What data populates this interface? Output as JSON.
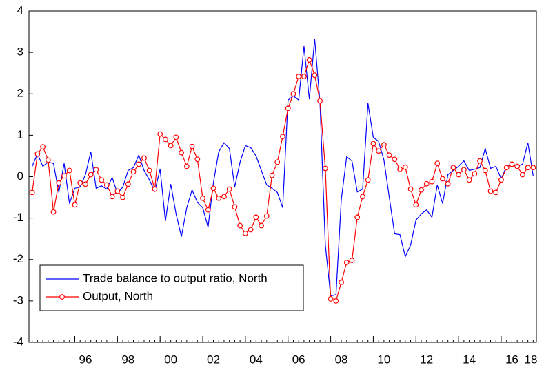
{
  "chart_data": {
    "type": "line",
    "x": [
      1994,
      1994.25,
      1994.5,
      1994.75,
      1995,
      1995.25,
      1995.5,
      1995.75,
      1996,
      1996.25,
      1996.5,
      1996.75,
      1997,
      1997.25,
      1997.5,
      1997.75,
      1998,
      1998.25,
      1998.5,
      1998.75,
      1999,
      1999.25,
      1999.5,
      1999.75,
      2000,
      2000.25,
      2000.5,
      2000.75,
      2001,
      2001.25,
      2001.5,
      2001.75,
      2002,
      2002.25,
      2002.5,
      2002.75,
      2003,
      2003.25,
      2003.5,
      2003.75,
      2004,
      2004.25,
      2004.5,
      2004.75,
      2005,
      2005.25,
      2005.5,
      2005.75,
      2006,
      2006.25,
      2006.5,
      2006.75,
      2007,
      2007.25,
      2007.5,
      2007.75,
      2008,
      2008.25,
      2008.5,
      2008.75,
      2009,
      2009.25,
      2009.5,
      2009.75,
      2010,
      2010.25,
      2010.5,
      2010.75,
      2011,
      2011.25,
      2011.5,
      2011.75,
      2012,
      2012.25,
      2012.5,
      2012.75,
      2013,
      2013.25,
      2013.5,
      2013.75,
      2014,
      2014.25,
      2014.5,
      2014.75,
      2015,
      2015.25,
      2015.5,
      2015.75,
      2016,
      2016.25,
      2016.5,
      2016.75,
      2017,
      2017.25,
      2017.5
    ],
    "series": [
      {
        "name": "Trade balance to output ratio, North",
        "color": "#0000ff",
        "markers": false,
        "values": [
          0.25,
          0.55,
          0.25,
          0.35,
          0.32,
          -0.38,
          0.32,
          -0.65,
          -0.28,
          -0.25,
          0.05,
          0.6,
          -0.28,
          -0.22,
          -0.3,
          -0.02,
          -0.4,
          -0.25,
          0.15,
          0.22,
          0.52,
          0.15,
          -0.08,
          -0.35,
          0.18,
          -1.07,
          -0.18,
          -0.9,
          -1.45,
          -0.75,
          -0.32,
          -0.62,
          -0.75,
          -1.22,
          -0.15,
          0.6,
          0.82,
          0.68,
          -0.25,
          0.35,
          0.75,
          0.7,
          0.5,
          0.15,
          -0.2,
          -0.28,
          -0.38,
          -0.75,
          1.85,
          1.95,
          1.85,
          3.15,
          1.87,
          3.33,
          1.78,
          -1.65,
          -2.88,
          -2.85,
          -0.55,
          0.48,
          0.38,
          -0.37,
          -0.3,
          1.77,
          0.95,
          0.85,
          0.4,
          -0.5,
          -1.38,
          -1.4,
          -1.93,
          -1.65,
          -1.05,
          -0.9,
          -0.8,
          -0.98,
          -0.2,
          -0.65,
          0.05,
          0.15,
          0.25,
          0.38,
          0.15,
          0.18,
          0.22,
          0.68,
          0.2,
          0.25,
          -0.05,
          0.25,
          0.28,
          0.25,
          0.3,
          0.82,
          0.02
        ]
      },
      {
        "name": "Output, North",
        "color": "#ff0000",
        "markers": true,
        "values": [
          -0.38,
          0.55,
          0.72,
          0.4,
          -0.85,
          -0.15,
          0.02,
          0.15,
          -0.68,
          -0.15,
          -0.18,
          0.05,
          0.17,
          -0.08,
          -0.2,
          -0.48,
          -0.35,
          -0.5,
          -0.18,
          0.12,
          0.3,
          0.45,
          0.15,
          -0.3,
          1.03,
          0.9,
          0.75,
          0.95,
          0.58,
          0.25,
          0.73,
          0.42,
          -0.52,
          -0.8,
          -0.28,
          -0.52,
          -0.48,
          -0.3,
          -0.73,
          -1.18,
          -1.37,
          -1.28,
          -0.98,
          -1.18,
          -0.95,
          0.03,
          0.35,
          0.97,
          1.65,
          2.0,
          2.42,
          2.42,
          2.82,
          2.45,
          1.83,
          0.2,
          -2.95,
          -3.0,
          -2.55,
          -2.07,
          -2.02,
          -0.98,
          -0.48,
          -0.08,
          0.8,
          0.62,
          0.77,
          0.52,
          0.42,
          0.18,
          0.23,
          -0.3,
          -0.68,
          -0.32,
          -0.17,
          -0.12,
          0.32,
          -0.05,
          -0.17,
          0.22,
          0.05,
          0.17,
          -0.08,
          0.07,
          0.38,
          0.15,
          -0.35,
          -0.38,
          -0.08,
          0.22,
          0.3,
          0.25,
          0.05,
          0.22,
          0.22
        ]
      }
    ],
    "xlim": [
      1993.85,
      2017.65
    ],
    "xticks": [
      {
        "value": 1996,
        "label": "96"
      },
      {
        "value": 1998,
        "label": "98"
      },
      {
        "value": 2000,
        "label": "00"
      },
      {
        "value": 2002,
        "label": "02"
      },
      {
        "value": 2004,
        "label": "04"
      },
      {
        "value": 2006,
        "label": "06"
      },
      {
        "value": 2008,
        "label": "08"
      },
      {
        "value": 2010,
        "label": "10"
      },
      {
        "value": 2012,
        "label": "12"
      },
      {
        "value": 2014,
        "label": "14"
      },
      {
        "value": 2016,
        "label": "16"
      },
      {
        "value": 2018,
        "label": "18"
      }
    ],
    "ylim": [
      -4,
      4
    ],
    "yticks": [
      -4,
      -3,
      -2,
      -1,
      0,
      1,
      2,
      3,
      4
    ],
    "grid": false,
    "legend": "lower left"
  }
}
